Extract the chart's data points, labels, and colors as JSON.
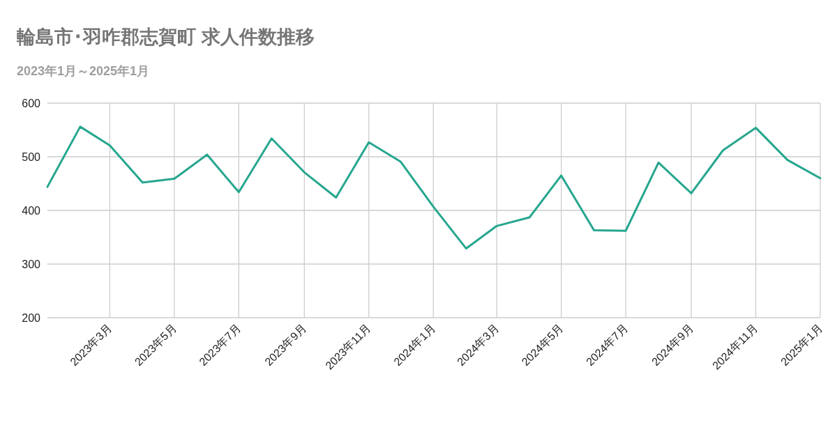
{
  "chart_data": {
    "type": "line",
    "title": "輪島市･羽咋郡志賀町 求人件数推移",
    "subtitle": "2023年1月～2025年1月",
    "x": [
      "2023-01",
      "2023-02",
      "2023-03",
      "2023-04",
      "2023-05",
      "2023-06",
      "2023-07",
      "2023-08",
      "2023-09",
      "2023-10",
      "2023-11",
      "2023-12",
      "2024-01",
      "2024-02",
      "2024-03",
      "2024-04",
      "2024-05",
      "2024-06",
      "2024-07",
      "2024-08",
      "2024-09",
      "2024-10",
      "2024-11",
      "2024-12",
      "2025-01"
    ],
    "series": [
      {
        "color": "#26a68f",
        "values": [
          444,
          556,
          521,
          452,
          459,
          504,
          434,
          534,
          471,
          424,
          527,
          491,
          407,
          329,
          371,
          387,
          465,
          363,
          362,
          489,
          432,
          512,
          554,
          494,
          460
        ]
      }
    ],
    "xlim": [
      "2023-01",
      "2025-01"
    ],
    "xticks": [
      {
        "value": "2023-03",
        "label": "2023年3月"
      },
      {
        "value": "2023-05",
        "label": "2023年5月"
      },
      {
        "value": "2023-07",
        "label": "2023年7月"
      },
      {
        "value": "2023-09",
        "label": "2023年9月"
      },
      {
        "value": "2023-11",
        "label": "2023年11月"
      },
      {
        "value": "2024-01",
        "label": "2024年1月"
      },
      {
        "value": "2024-03",
        "label": "2024年3月"
      },
      {
        "value": "2024-05",
        "label": "2024年5月"
      },
      {
        "value": "2024-07",
        "label": "2024年7月"
      },
      {
        "value": "2024-09",
        "label": "2024年9月"
      },
      {
        "value": "2024-11",
        "label": "2024年11月"
      },
      {
        "value": "2025-01",
        "label": "2025年1月"
      }
    ],
    "ylim": [
      200,
      600
    ],
    "yticks": [
      200,
      300,
      400,
      500,
      600
    ],
    "grid": true,
    "marker": "none",
    "line_style": "solid"
  }
}
